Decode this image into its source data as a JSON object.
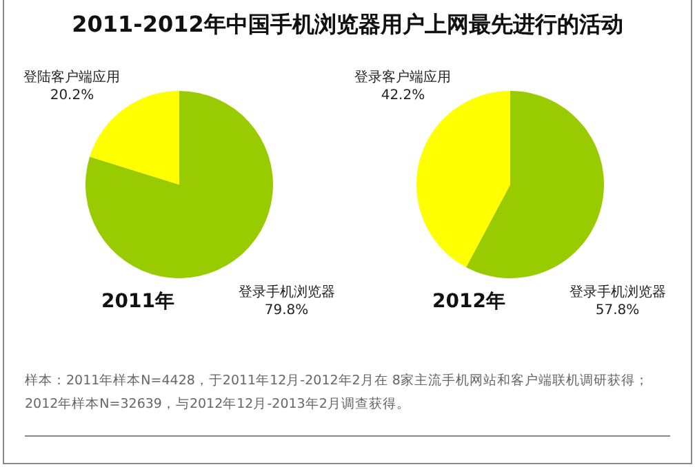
{
  "chart_data": [
    {
      "type": "pie",
      "title": "2011-2012年中国手机浏览器用户上网最先进行的活动",
      "xlabel": "2011年",
      "categories": [
        "登录手机浏览器",
        "登陆客户端应用"
      ],
      "values": [
        79.8,
        20.2
      ],
      "value_labels": [
        "79.8%",
        "20.2%"
      ],
      "colors": [
        "#99cc00",
        "#ffff00"
      ]
    },
    {
      "type": "pie",
      "xlabel": "2012年",
      "categories": [
        "登录手机浏览器",
        "登录客户端应用"
      ],
      "values": [
        57.8,
        42.2
      ],
      "value_labels": [
        "57.8%",
        "42.2%"
      ],
      "colors": [
        "#99cc00",
        "#ffff00"
      ],
      "annotations": [
        "样本：2011年样本N=4428，于2011年12月-2012年2月在 8家主流手机网站和客户端联机调研获得；",
        "2012年样本N=32639，与2012年12月-2013年2月调查获得。"
      ]
    }
  ]
}
